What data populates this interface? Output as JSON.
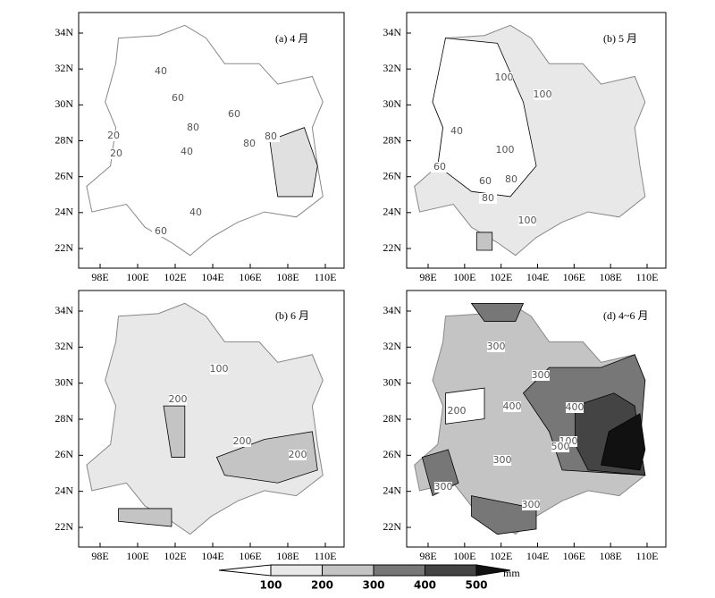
{
  "panels": [
    {
      "label": "(a)  4 月",
      "contour_labels": [
        "40",
        "60",
        "80",
        "60",
        "20",
        "20",
        "40",
        "80",
        "80",
        "40",
        "60"
      ]
    },
    {
      "label": "(b) 5 月",
      "contour_labels": [
        "100",
        "100",
        "40",
        "60",
        "100",
        "60",
        "80",
        "80",
        "100"
      ]
    },
    {
      "label": "(b)  6 月",
      "contour_labels": [
        "100",
        "200",
        "200",
        "200"
      ]
    },
    {
      "label": "(d) 4~6 月",
      "contour_labels": [
        "300",
        "300",
        "400",
        "400",
        "200",
        "100",
        "500",
        "300",
        "300",
        "300"
      ]
    }
  ],
  "axes": {
    "y_ticks": [
      "34N",
      "32N",
      "30N",
      "28N",
      "26N",
      "24N",
      "22N"
    ],
    "x_ticks": [
      "98E",
      "100E",
      "102E",
      "104E",
      "106E",
      "108E",
      "110E"
    ]
  },
  "colorbar": {
    "ticks": [
      "100",
      "200",
      "300",
      "400",
      "500"
    ],
    "unit": "mm"
  }
}
